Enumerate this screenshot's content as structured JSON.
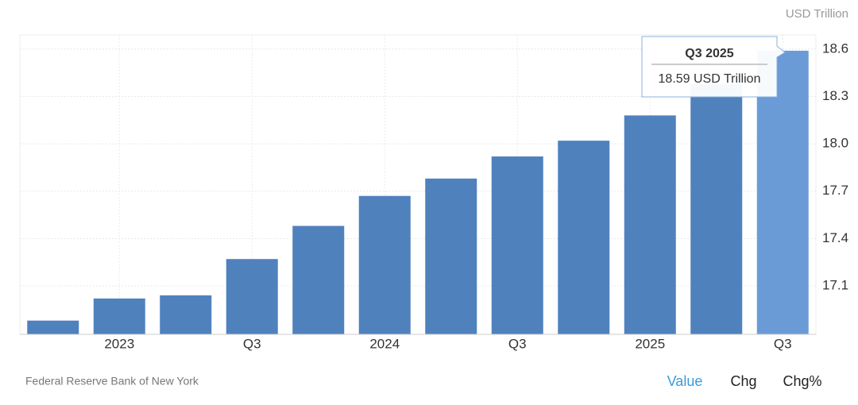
{
  "chart_data": {
    "type": "bar",
    "unit": "USD Trillion",
    "categories": [
      null,
      "2023",
      null,
      "Q3",
      null,
      "2024",
      null,
      "Q3",
      null,
      "2025",
      null,
      "Q3"
    ],
    "values": [
      16.88,
      17.02,
      17.04,
      17.27,
      17.48,
      17.67,
      17.78,
      17.92,
      18.02,
      18.18,
      18.38,
      18.59
    ],
    "colors": [
      "#4f81bd",
      "#4f81bd",
      "#4f81bd",
      "#4f81bd",
      "#4f81bd",
      "#4f81bd",
      "#4f81bd",
      "#4f81bd",
      "#4f81bd",
      "#4f81bd",
      "#4f81bd",
      "#6a9bd7"
    ],
    "ylim": [
      16.793,
      18.69
    ],
    "yticks": [
      17.1,
      17.4,
      17.7,
      {
        "value": 18,
        "label": "18.0"
      },
      18.3,
      18.6
    ],
    "grid": true,
    "tooltip": {
      "title": "Q3 2025",
      "text": "18.59 USD Trillion"
    },
    "source": "Federal Reserve Bank of New York",
    "buttons": [
      "Value",
      "Chg",
      "Chg%"
    ]
  }
}
